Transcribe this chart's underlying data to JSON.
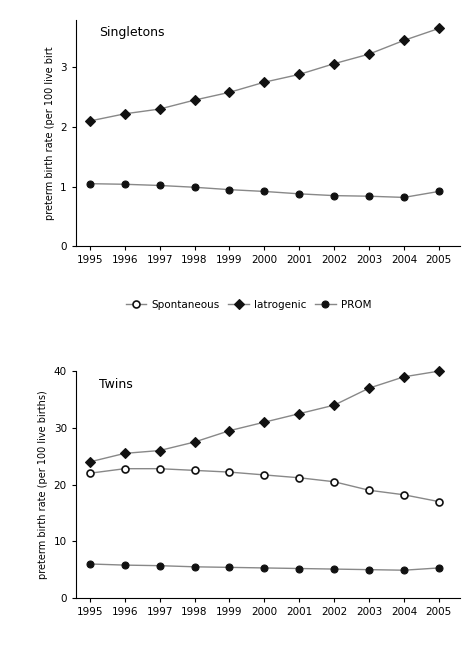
{
  "years": [
    1995,
    1996,
    1997,
    1998,
    1999,
    2000,
    2001,
    2002,
    2003,
    2004,
    2005
  ],
  "singletons": {
    "iatrogenic": [
      2.1,
      2.22,
      2.3,
      2.45,
      2.58,
      2.75,
      2.88,
      3.06,
      3.22,
      3.45,
      3.65
    ],
    "prom": [
      1.05,
      1.04,
      1.02,
      0.99,
      0.95,
      0.92,
      0.88,
      0.85,
      0.84,
      0.82,
      0.92
    ]
  },
  "twins": {
    "spontaneous": [
      22.0,
      22.8,
      22.8,
      22.5,
      22.2,
      21.7,
      21.2,
      20.5,
      19.0,
      18.2,
      17.0
    ],
    "iatrogenic": [
      24.0,
      25.5,
      26.0,
      27.5,
      29.5,
      31.0,
      32.5,
      34.0,
      37.0,
      39.0,
      40.0
    ],
    "prom": [
      6.0,
      5.8,
      5.7,
      5.5,
      5.4,
      5.3,
      5.2,
      5.1,
      5.0,
      4.9,
      5.3
    ]
  },
  "singleton_ylim": [
    0,
    3.8
  ],
  "singleton_yticks": [
    0,
    1,
    2,
    3
  ],
  "twins_ylim": [
    0,
    40
  ],
  "twins_yticks": [
    0,
    10,
    20,
    30,
    40
  ],
  "ylabel_singleton": "preterm birth rate (per 100 live birt",
  "ylabel_twins": "preterm birth rate (per 100 live births)",
  "line_color": "#888888",
  "marker_color": "#111111",
  "legend_entries": [
    {
      "label": "Spontaneous",
      "marker": "o",
      "filled": false
    },
    {
      "label": "Iatrogenic",
      "marker": "D",
      "filled": true
    },
    {
      "label": "PROM",
      "marker": "o",
      "filled": true
    }
  ],
  "panel_label_singleton": "Singletons",
  "panel_label_twins": "Twins"
}
